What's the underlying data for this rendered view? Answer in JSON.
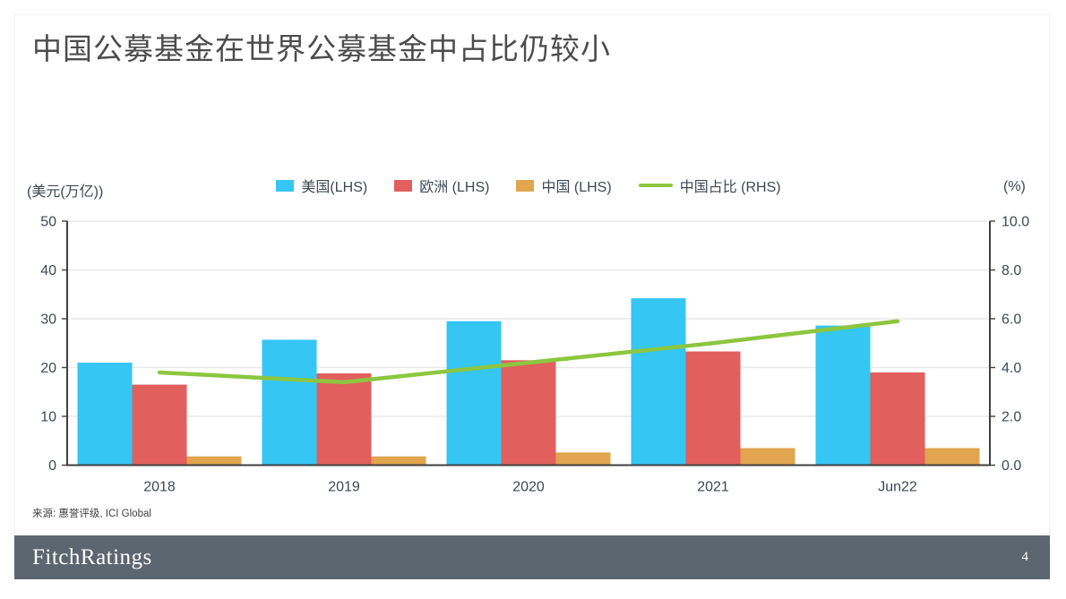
{
  "page": {
    "title": "中国公募基金在世界公募基金中占比仍较小"
  },
  "source_note": "来源: 惠誉评级, ICI Global",
  "footer": {
    "brand": "FitchRatings",
    "page_number": "4",
    "bg_color": "#5c6670"
  },
  "chart_data": {
    "type": "bar",
    "subtype": "grouped bars with overlay line on secondary axis",
    "categories": [
      "2018",
      "2019",
      "2020",
      "2021",
      "Jun22"
    ],
    "series": [
      {
        "key": "us",
        "name": "美国(LHS)",
        "type": "bar",
        "axis": "left",
        "color": "#35c6f3",
        "values": [
          21.0,
          25.7,
          29.5,
          34.2,
          28.6
        ]
      },
      {
        "key": "europe",
        "name": "欧洲 (LHS)",
        "type": "bar",
        "axis": "left",
        "color": "#e15f5c",
        "values": [
          16.5,
          18.8,
          21.5,
          23.3,
          19.0
        ]
      },
      {
        "key": "china",
        "name": "中国 (LHS)",
        "type": "bar",
        "axis": "left",
        "color": "#e0a54e",
        "values": [
          1.8,
          1.8,
          2.6,
          3.5,
          3.5
        ]
      },
      {
        "key": "china-share",
        "name": "中国占比 (RHS)",
        "type": "line",
        "axis": "right",
        "color": "#8cc640",
        "values": [
          3.8,
          3.4,
          4.2,
          5.0,
          5.9
        ]
      }
    ],
    "left_axis": {
      "label": "(美元(万亿))",
      "min": 0,
      "max": 50,
      "step": 10,
      "ticks": [
        "0",
        "10",
        "20",
        "30",
        "40",
        "50"
      ]
    },
    "right_axis": {
      "label": "(%)",
      "min": 0,
      "max": 10,
      "step": 2,
      "ticks": [
        "0.0",
        "2.0",
        "4.0",
        "6.0",
        "8.0",
        "10.0"
      ]
    },
    "grid": true,
    "legend_position": "top-center",
    "colors": {
      "gridline": "#e9e9e9",
      "axis_line": "#3f3f3f",
      "axis_text": "#3e4852"
    }
  }
}
